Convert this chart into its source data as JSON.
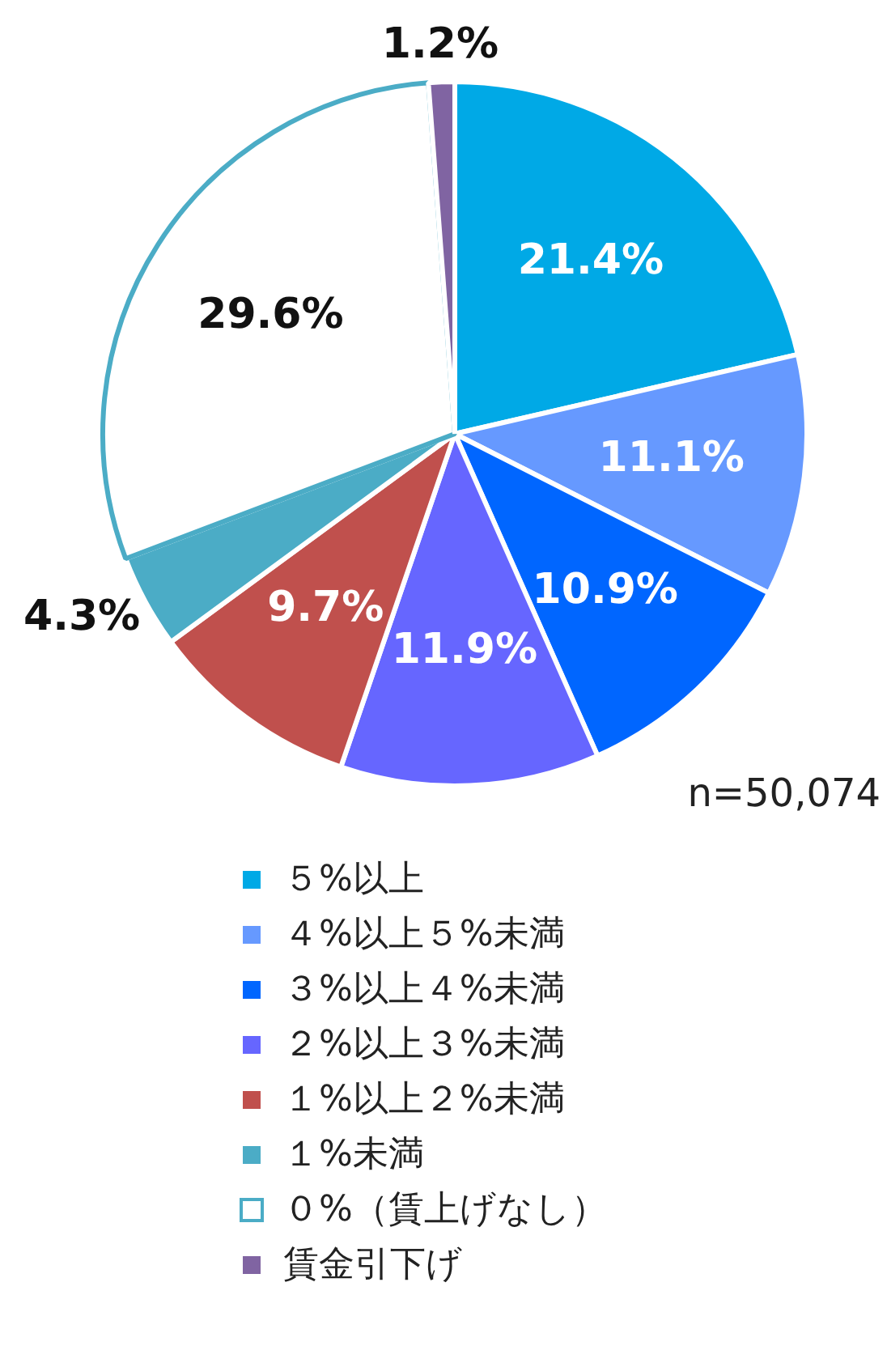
{
  "chart_data": {
    "type": "pie",
    "categories": [
      "５%以上",
      "４%以上５%未満",
      "３%以上４%未満",
      "２%以上３%未満",
      "１%以上２%未満",
      "１%未満",
      "０%（賃上げなし）",
      "賃金引下げ"
    ],
    "values": [
      21.4,
      11.1,
      10.9,
      11.9,
      9.7,
      4.3,
      29.6,
      1.2
    ],
    "value_labels": [
      "21.4%",
      "11.1%",
      "10.9%",
      "11.9%",
      "9.7%",
      "4.3%",
      "29.6%",
      "1.2%"
    ],
    "colors": [
      "#00a9e6",
      "#6699ff",
      "#0066ff",
      "#6666ff",
      "#c0504d",
      "#4bacc6",
      "#ffffff",
      "#8064a2"
    ],
    "legend": "bottom",
    "annotations": [
      "n=50,074"
    ]
  }
}
